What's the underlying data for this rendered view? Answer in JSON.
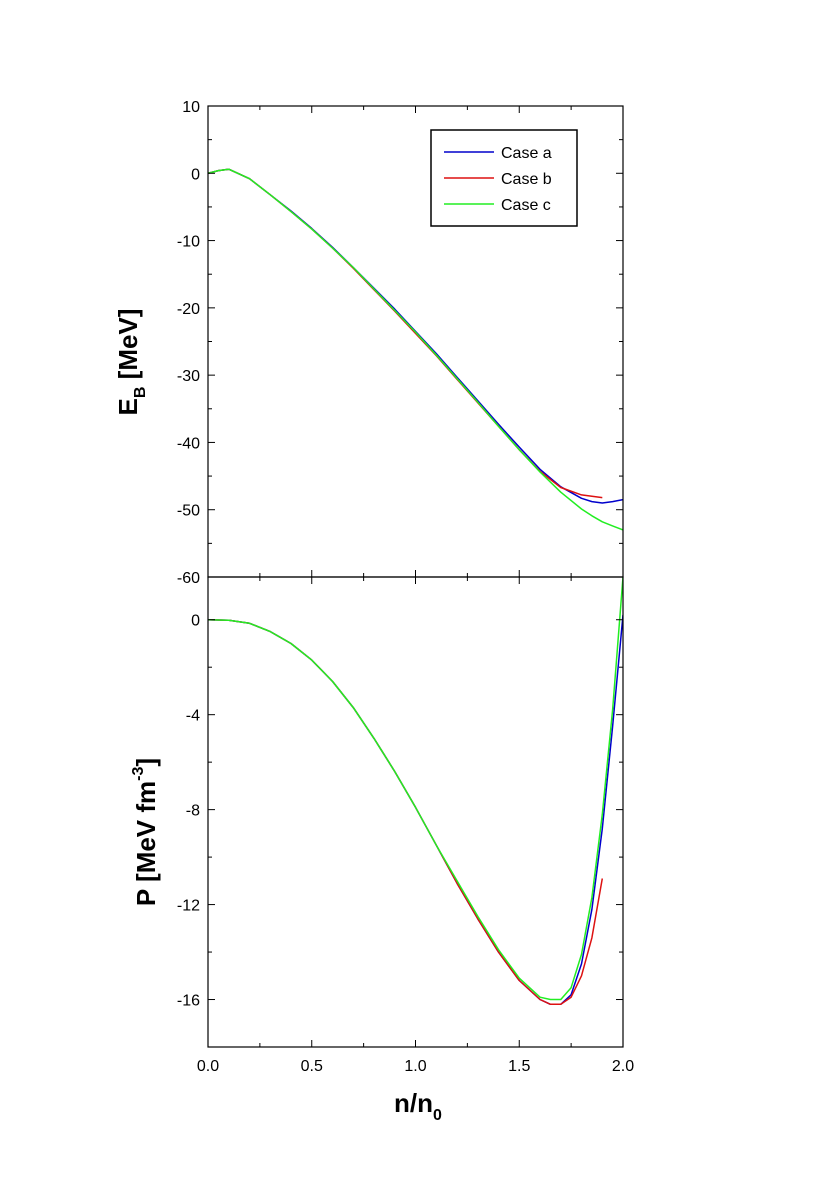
{
  "colors": {
    "case_a": "#0000cc",
    "case_b": "#dd1111",
    "case_c": "#22ee22",
    "axis": "#000000"
  },
  "chart_data": [
    {
      "type": "line",
      "ylabel_main": "E",
      "ylabel_sub": "B",
      "ylabel_rest": " [MeV]",
      "xlim": [
        0,
        2
      ],
      "ylim": [
        -60,
        10
      ],
      "yticks": [
        "10",
        "0",
        "-10",
        "-20",
        "-30",
        "-40",
        "-50",
        "-60"
      ],
      "ytick_values": [
        10,
        0,
        -10,
        -20,
        -30,
        -40,
        -50,
        -60
      ],
      "legend": {
        "placement": "top-right",
        "entries": [
          "Case a",
          "Case b",
          "Case c"
        ]
      },
      "series": [
        {
          "name": "Case a",
          "x": [
            0,
            0.05,
            0.1,
            0.2,
            0.3,
            0.4,
            0.5,
            0.6,
            0.7,
            0.8,
            0.9,
            1.0,
            1.1,
            1.2,
            1.3,
            1.4,
            1.5,
            1.6,
            1.7,
            1.8,
            1.85,
            1.9,
            1.95,
            2.0
          ],
          "y": [
            0,
            0.4,
            0.6,
            -0.8,
            -3.2,
            -5.6,
            -8.2,
            -11.0,
            -14.0,
            -17.1,
            -20.2,
            -23.5,
            -26.8,
            -30.3,
            -33.8,
            -37.3,
            -40.7,
            -44.0,
            -46.6,
            -48.3,
            -48.8,
            -49.0,
            -48.8,
            -48.5
          ]
        },
        {
          "name": "Case b",
          "x": [
            0,
            0.05,
            0.1,
            0.2,
            0.3,
            0.4,
            0.5,
            0.6,
            0.7,
            0.8,
            0.9,
            1.0,
            1.1,
            1.2,
            1.3,
            1.4,
            1.5,
            1.6,
            1.7,
            1.8,
            1.85,
            1.9
          ],
          "y": [
            0,
            0.4,
            0.6,
            -0.8,
            -3.2,
            -5.7,
            -8.3,
            -11.1,
            -14.1,
            -17.3,
            -20.5,
            -23.8,
            -27.1,
            -30.6,
            -34.1,
            -37.6,
            -41.1,
            -44.3,
            -46.7,
            -47.8,
            -48.0,
            -48.2
          ]
        },
        {
          "name": "Case c",
          "x": [
            0,
            0.05,
            0.1,
            0.2,
            0.3,
            0.4,
            0.5,
            0.6,
            0.7,
            0.8,
            0.9,
            1.0,
            1.1,
            1.2,
            1.3,
            1.4,
            1.5,
            1.6,
            1.7,
            1.8,
            1.85,
            1.9,
            1.95,
            2.0
          ],
          "y": [
            0,
            0.4,
            0.6,
            -0.8,
            -3.2,
            -5.7,
            -8.3,
            -11.1,
            -14.0,
            -17.2,
            -20.4,
            -23.6,
            -27.0,
            -30.5,
            -34.0,
            -37.6,
            -41.1,
            -44.4,
            -47.4,
            -49.9,
            -50.9,
            -51.8,
            -52.4,
            -53.0
          ]
        }
      ]
    },
    {
      "type": "line",
      "xlabel_main": "n/n",
      "xlabel_sub": "0",
      "ylabel_main": "P [MeV fm",
      "ylabel_sup": "-3",
      "ylabel_rest": "]",
      "xlim": [
        0,
        2
      ],
      "ylim": [
        -18,
        1.8
      ],
      "xticks": [
        "0.0",
        "0.5",
        "1.0",
        "1.5",
        "2.0"
      ],
      "xtick_values": [
        0,
        0.5,
        1.0,
        1.5,
        2.0
      ],
      "yticks": [
        "0",
        "-4",
        "-8",
        "-12",
        "-16"
      ],
      "ytick_values": [
        0,
        -4,
        -8,
        -12,
        -16
      ],
      "series": [
        {
          "name": "Case a",
          "x": [
            0,
            0.1,
            0.2,
            0.3,
            0.4,
            0.5,
            0.6,
            0.7,
            0.8,
            0.9,
            1.0,
            1.1,
            1.2,
            1.3,
            1.4,
            1.5,
            1.6,
            1.65,
            1.7,
            1.75,
            1.8,
            1.85,
            1.9,
            1.95,
            2.0
          ],
          "y": [
            0,
            -0.02,
            -0.15,
            -0.5,
            -1.0,
            -1.7,
            -2.6,
            -3.7,
            -5.0,
            -6.4,
            -7.9,
            -9.5,
            -11.1,
            -12.6,
            -14.0,
            -15.2,
            -16.0,
            -16.2,
            -16.2,
            -15.8,
            -14.5,
            -12.2,
            -8.8,
            -4.5,
            0.2
          ]
        },
        {
          "name": "Case b",
          "x": [
            0,
            0.1,
            0.2,
            0.3,
            0.4,
            0.5,
            0.6,
            0.7,
            0.8,
            0.9,
            1.0,
            1.1,
            1.2,
            1.3,
            1.4,
            1.5,
            1.6,
            1.65,
            1.7,
            1.75,
            1.8,
            1.85,
            1.9
          ],
          "y": [
            0,
            -0.02,
            -0.15,
            -0.5,
            -1.0,
            -1.7,
            -2.6,
            -3.7,
            -5.0,
            -6.4,
            -7.9,
            -9.5,
            -11.1,
            -12.6,
            -14.0,
            -15.2,
            -16.0,
            -16.2,
            -16.2,
            -15.9,
            -15.0,
            -13.4,
            -10.9
          ]
        },
        {
          "name": "Case c",
          "x": [
            0,
            0.1,
            0.2,
            0.3,
            0.4,
            0.5,
            0.6,
            0.7,
            0.8,
            0.9,
            1.0,
            1.1,
            1.2,
            1.3,
            1.4,
            1.5,
            1.6,
            1.65,
            1.7,
            1.75,
            1.8,
            1.85,
            1.9,
            1.95,
            2.0
          ],
          "y": [
            0,
            -0.02,
            -0.15,
            -0.5,
            -1.0,
            -1.7,
            -2.6,
            -3.7,
            -5.0,
            -6.4,
            -7.9,
            -9.5,
            -11.0,
            -12.5,
            -13.9,
            -15.1,
            -15.9,
            -16.0,
            -16.0,
            -15.5,
            -14.1,
            -11.7,
            -8.2,
            -3.8,
            1.8
          ]
        }
      ]
    }
  ]
}
